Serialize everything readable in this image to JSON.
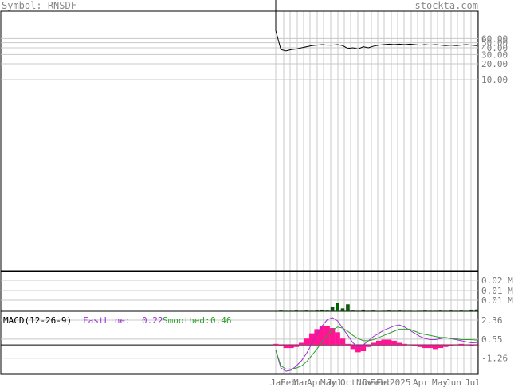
{
  "header": {
    "symbol_label": "Symbol:",
    "symbol": "RNSDF",
    "site": "stockta.com"
  },
  "colors": {
    "grid": "#c8c8c8",
    "frame": "#000000",
    "price": "#000000",
    "volume": "#006400",
    "macd_hist": "#ff1493",
    "fast_line": "#9932cc",
    "smoothed": "#2e9e2e",
    "axis_text": "#777777"
  },
  "chart_data": [
    {
      "id": "price",
      "type": "line",
      "y_scale": "log",
      "y_ticks": [
        "60.00",
        "50.00",
        "40.00",
        "30.00",
        "20.00",
        "10.00"
      ],
      "x_labels": [
        "Jan",
        "Feb",
        "Mar",
        "Apr",
        "May",
        "Jul",
        "Oct",
        "Nov",
        "Dec",
        "Feb",
        "Feb",
        "2025",
        "Apr",
        "May",
        "Jun",
        "Jul"
      ],
      "series": [
        {
          "values": [
            85,
            37,
            35,
            37,
            38,
            40,
            42,
            44,
            45,
            46,
            45,
            45,
            46,
            44,
            39,
            40,
            38,
            42,
            40,
            43,
            45,
            46,
            47,
            46,
            47,
            46,
            47,
            46,
            45,
            46,
            45,
            46,
            45,
            44,
            45,
            44,
            45,
            46,
            45,
            44
          ]
        }
      ]
    },
    {
      "id": "volume",
      "type": "bar",
      "y_ticks": [
        "0.02 M",
        "0.01 M",
        "0.01 M"
      ],
      "ymax": 0.025,
      "values": [
        0,
        0.0003,
        0.0002,
        0.0002,
        0.0003,
        0.0002,
        0.0003,
        0.0002,
        0.0003,
        0.0004,
        0.0003,
        0.0021,
        0.0046,
        0.0012,
        0.0038,
        0.0003,
        0.0002,
        0.0004,
        0.0002,
        0.0003,
        0.0001,
        0.0002,
        0.0003,
        0.0002,
        0.0003,
        0.0002,
        0.0002,
        0.0001,
        0.0002,
        0.0003,
        0.0002,
        0.0002,
        0.0003,
        0.0002,
        0.0003,
        0.0002,
        0.0003,
        0.0002,
        0.0004,
        0.0005
      ]
    },
    {
      "id": "macd",
      "type": "line",
      "title": "MACD(12-26-9)",
      "fast_label": "FastLine:",
      "fast_value": "0.22",
      "smoothed_label": "Smoothed:",
      "smoothed_value": "0.46",
      "y_ticks": [
        "2.36",
        "0.55",
        "-1.26"
      ],
      "ylim": [
        -2.8,
        3.2
      ],
      "histogram": [
        0.1,
        -0.1,
        -0.3,
        -0.3,
        -0.2,
        0.2,
        0.6,
        1.1,
        1.5,
        1.8,
        1.8,
        1.6,
        1.2,
        0.6,
        0.1,
        -0.4,
        -0.7,
        -0.6,
        -0.2,
        0.2,
        0.4,
        0.5,
        0.5,
        0.4,
        0.2,
        0.1,
        0.0,
        -0.1,
        -0.2,
        -0.3,
        -0.3,
        -0.4,
        -0.3,
        -0.2,
        -0.1,
        0.0,
        0.1,
        0.0,
        -0.1,
        0.0
      ],
      "series": [
        {
          "name": "FastLine",
          "values": [
            -0.5,
            -2.2,
            -2.5,
            -2.4,
            -2.0,
            -1.5,
            -0.8,
            0.1,
            1.0,
            1.8,
            2.4,
            2.6,
            2.3,
            1.6,
            0.9,
            0.2,
            -0.2,
            0.0,
            0.4,
            0.8,
            1.1,
            1.4,
            1.6,
            1.8,
            1.9,
            1.7,
            1.4,
            1.1,
            0.8,
            0.6,
            0.5,
            0.5,
            0.6,
            0.7,
            0.6,
            0.5,
            0.4,
            0.3,
            0.2,
            0.22
          ]
        },
        {
          "name": "Smoothed",
          "values": [
            -0.5,
            -2.0,
            -2.3,
            -2.3,
            -2.2,
            -2.0,
            -1.6,
            -1.0,
            -0.4,
            0.3,
            0.9,
            1.4,
            1.7,
            1.6,
            1.3,
            0.9,
            0.6,
            0.4,
            0.4,
            0.5,
            0.7,
            0.9,
            1.1,
            1.3,
            1.5,
            1.5,
            1.5,
            1.3,
            1.1,
            1.0,
            0.9,
            0.8,
            0.7,
            0.7,
            0.6,
            0.6,
            0.5,
            0.5,
            0.5,
            0.46
          ]
        }
      ]
    }
  ]
}
